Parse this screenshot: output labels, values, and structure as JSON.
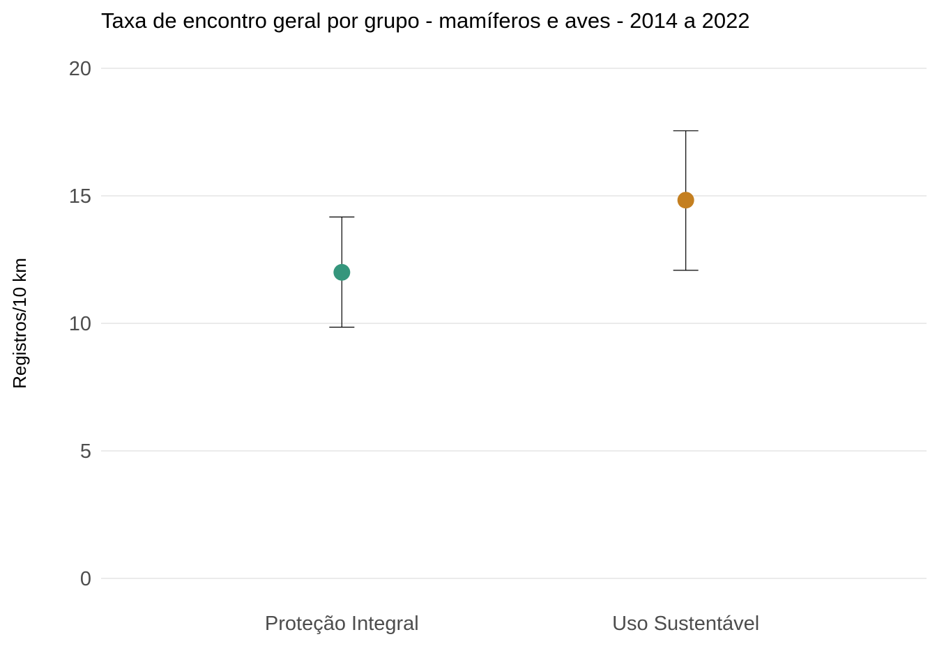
{
  "chart_data": {
    "type": "scatter",
    "title": "Taxa de encontro geral por grupo - mamíferos e aves - 2014 a 2022",
    "xlabel": "",
    "ylabel": "Registros/10 km",
    "categories": [
      "Proteção Integral",
      "Uso Sustentável"
    ],
    "values": [
      12.0,
      14.83
    ],
    "error_low": [
      9.85,
      12.08
    ],
    "error_high": [
      14.17,
      17.55
    ],
    "colors": [
      "#35967c",
      "#c47f20"
    ],
    "ylim": [
      0,
      20
    ],
    "yticks": [
      "0",
      "5",
      "10",
      "15",
      "20"
    ],
    "grid": true,
    "legend": "none"
  }
}
